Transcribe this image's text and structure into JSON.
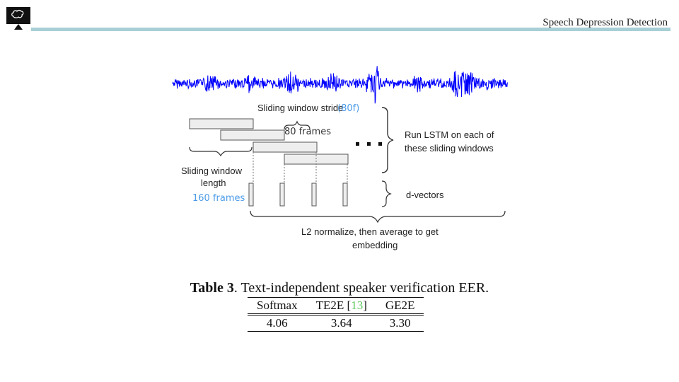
{
  "header": {
    "title": "Speech Depression Detection",
    "logo_icon": "brain-monitor-icon",
    "bar_color": "#a8cfd6"
  },
  "diagram": {
    "waveform_color": "#0000ff",
    "stride_label": "Sliding window stride",
    "stride_hand_note": "(80f)",
    "stride_frames_note": "80 frames",
    "length_label_line1": "Sliding window",
    "length_label_line2": "length",
    "length_frames_note": "160 frames",
    "lstm_label_line1": "Run LSTM on each of",
    "lstm_label_line2": "these sliding windows",
    "dvector_label": "d-vectors",
    "normalize_label_line1": "L2 normalize, then average to get",
    "normalize_label_line2": "embedding"
  },
  "table": {
    "caption_bold": "Table 3",
    "caption_rest": ".  Text-independent speaker verification EER.",
    "headers": [
      "Softmax",
      "TE2E",
      "GE2E"
    ],
    "te2e_ref": "13",
    "rows": [
      [
        "4.06",
        "3.64",
        "3.30"
      ]
    ]
  }
}
